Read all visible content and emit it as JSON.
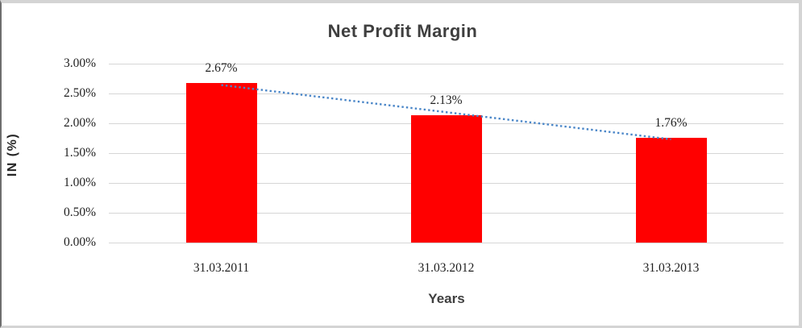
{
  "chart_data": {
    "type": "bar",
    "title": "Net Profit Margin",
    "xlabel": "Years",
    "ylabel": "IN (%)",
    "categories": [
      "31.03.2011",
      "31.03.2012",
      "31.03.2013"
    ],
    "values": [
      2.67,
      2.13,
      1.76
    ],
    "data_labels": [
      "2.67%",
      "2.13%",
      "1.76%"
    ],
    "yticks": [
      0,
      0.5,
      1,
      1.5,
      2,
      2.5,
      3
    ],
    "ytick_labels": [
      "0.00%",
      "0.50%",
      "1.00%",
      "1.50%",
      "2.00%",
      "2.50%",
      "3.00%"
    ],
    "ylim": [
      0,
      3
    ],
    "grid": true,
    "legend": "none",
    "bar_color": "#ff0000",
    "gridline_color": "#d6d6d6",
    "trendline": {
      "type": "linear",
      "style": "dotted",
      "color": "#4a86c8"
    }
  }
}
